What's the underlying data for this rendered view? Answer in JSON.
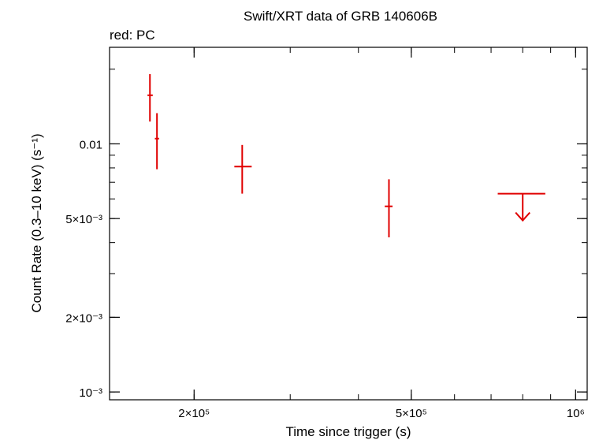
{
  "chart_data": {
    "type": "scatter",
    "title": "Swift/XRT data of GRB 140606B",
    "subtitle": "red: PC",
    "xlabel": "Time since trigger (s)",
    "ylabel": "Count Rate (0.3–10 keV) (s⁻¹)",
    "xscale": "log",
    "yscale": "log",
    "xlim": [
      140000,
      1050000
    ],
    "ylim": [
      0.00093,
      0.0245
    ],
    "grid": false,
    "series_color": "#e00000",
    "x_ticks": [
      {
        "value": 200000,
        "label": "2×10⁵"
      },
      {
        "value": 500000,
        "label": "5×10⁵"
      },
      {
        "value": 1000000,
        "label": "10⁶"
      }
    ],
    "y_ticks": [
      {
        "value": 0.01,
        "label": "0.01"
      },
      {
        "value": 0.005,
        "label": "5×10⁻³"
      },
      {
        "value": 0.002,
        "label": "2×10⁻³"
      },
      {
        "value": 0.001,
        "label": "10⁻³"
      }
    ],
    "points": [
      {
        "x": 166000,
        "xerr": [
          164300,
          168000
        ],
        "y": 0.0157,
        "yerr": [
          0.0123,
          0.0191
        ]
      },
      {
        "x": 171000,
        "xerr": [
          169500,
          172500
        ],
        "y": 0.0105,
        "yerr": [
          0.0079,
          0.0133
        ]
      },
      {
        "x": 245000,
        "xerr": [
          237000,
          255000
        ],
        "y": 0.0081,
        "yerr": [
          0.0063,
          0.0099
        ]
      },
      {
        "x": 455000,
        "xerr": [
          447000,
          462000
        ],
        "y": 0.0056,
        "yerr": [
          0.0042,
          0.0072
        ]
      }
    ],
    "upper_limits": [
      {
        "x": 800000,
        "xerr": [
          720000,
          880000
        ],
        "y": 0.0063
      }
    ]
  }
}
